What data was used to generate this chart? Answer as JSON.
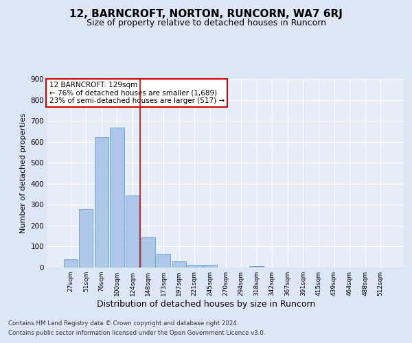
{
  "title": "12, BARNCROFT, NORTON, RUNCORN, WA7 6RJ",
  "subtitle": "Size of property relative to detached houses in Runcorn",
  "xlabel": "Distribution of detached houses by size in Runcorn",
  "ylabel": "Number of detached properties",
  "categories": [
    "27sqm",
    "51sqm",
    "76sqm",
    "100sqm",
    "124sqm",
    "148sqm",
    "173sqm",
    "197sqm",
    "221sqm",
    "245sqm",
    "270sqm",
    "294sqm",
    "318sqm",
    "342sqm",
    "367sqm",
    "391sqm",
    "415sqm",
    "439sqm",
    "464sqm",
    "488sqm",
    "512sqm"
  ],
  "values": [
    40,
    278,
    623,
    668,
    345,
    145,
    65,
    28,
    13,
    13,
    0,
    0,
    8,
    0,
    0,
    0,
    0,
    0,
    0,
    0,
    0
  ],
  "bar_color": "#aec6e8",
  "bar_edge_color": "#5a9fd4",
  "vline_x": 4.5,
  "vline_color": "#cc0000",
  "annotation_text": "12 BARNCROFT: 129sqm\n← 76% of detached houses are smaller (1,689)\n23% of semi-detached houses are larger (517) →",
  "annotation_box_color": "#ffffff",
  "annotation_box_edge_color": "#cc0000",
  "ylim": [
    0,
    900
  ],
  "yticks": [
    0,
    100,
    200,
    300,
    400,
    500,
    600,
    700,
    800,
    900
  ],
  "bg_color": "#dce6f5",
  "plot_bg_color": "#e8eef8",
  "footer_line1": "Contains HM Land Registry data © Crown copyright and database right 2024.",
  "footer_line2": "Contains public sector information licensed under the Open Government Licence v3.0.",
  "title_fontsize": 11,
  "subtitle_fontsize": 9,
  "xlabel_fontsize": 9,
  "ylabel_fontsize": 8
}
